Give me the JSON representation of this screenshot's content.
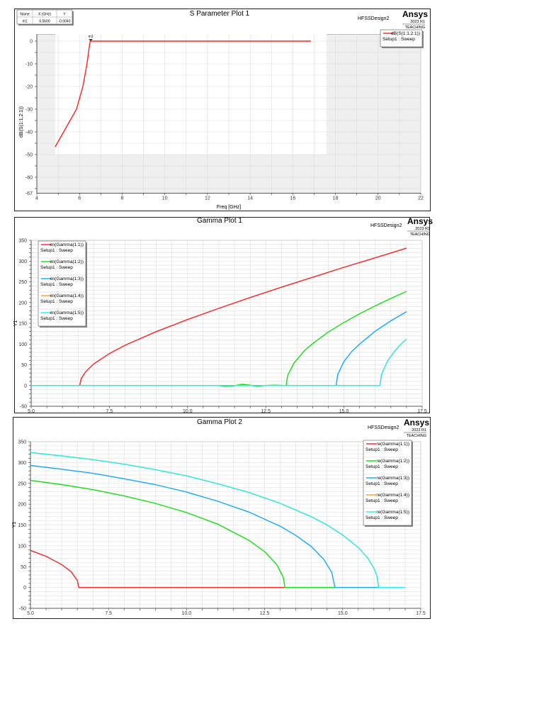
{
  "chart_data": [
    {
      "type": "line",
      "title": "S Parameter Plot 1",
      "design": "HFSSDesign2",
      "logo": {
        "brand": "Ansys",
        "version": "2023 R1",
        "edition": "TEACHING"
      },
      "xlabel": "Freq [GHz]",
      "ylabel": "dB(S(1:1,2:1))",
      "xlim": [
        4,
        22
      ],
      "ylim": [
        -67,
        3
      ],
      "xticks": [
        "4",
        "6",
        "8",
        "10",
        "12",
        "14",
        "16",
        "18",
        "20",
        "22"
      ],
      "yticks": [
        "0",
        "-10",
        "-20",
        "-30",
        "-40",
        "-50",
        "-60",
        "-67"
      ],
      "grid": true,
      "legend_placement": "top-right",
      "marker_table": {
        "headers": [
          "Name",
          "X (GHz)",
          "Y"
        ],
        "row": [
          "m1",
          "6.5600",
          "-0.0040"
        ]
      },
      "marker": {
        "name": "m1",
        "x": 6.56,
        "y": -0.004
      },
      "series": [
        {
          "name": "dB(S(1:1,2:1))",
          "setup": "Setup1 : Sweep",
          "color": "#ff2020",
          "points": [
            [
              4.86,
              -46.6
            ],
            [
              5.26,
              -40
            ],
            [
              5.86,
              -30
            ],
            [
              6.16,
              -20
            ],
            [
              6.35,
              -10
            ],
            [
              6.45,
              -3
            ],
            [
              6.5,
              0
            ],
            [
              16.85,
              0
            ]
          ]
        }
      ]
    },
    {
      "type": "line",
      "title": "Gamma Plot 1",
      "design": "HFSSDesign2",
      "logo": {
        "brand": "Ansys",
        "version": "2023 R1",
        "edition": "TEACHING"
      },
      "xlabel": "",
      "ylabel": "Y1",
      "xlim": [
        5,
        17.5
      ],
      "ylim": [
        -50,
        350
      ],
      "xticks": [
        "5.0",
        "7.5",
        "10.0",
        "12.5",
        "15.0",
        "17.5"
      ],
      "yticks": [
        "350",
        "300",
        "250",
        "200",
        "150",
        "100",
        "50",
        "0",
        "-50"
      ],
      "grid": true,
      "legend_placement": "top-left",
      "series": [
        {
          "name": "im(Gamma(1:1))",
          "setup": "Setup1 : Sweep",
          "color": "#ff2020",
          "points": [
            [
              5,
              0
            ],
            [
              6.55,
              0
            ],
            [
              6.6,
              17
            ],
            [
              6.75,
              34
            ],
            [
              7,
              52
            ],
            [
              7.5,
              77
            ],
            [
              8,
              97
            ],
            [
              9,
              130
            ],
            [
              10,
              159
            ],
            [
              11,
              186
            ],
            [
              12,
              212
            ],
            [
              13,
              237
            ],
            [
              14,
              261
            ],
            [
              15,
              285
            ],
            [
              16,
              308
            ],
            [
              17,
              331
            ]
          ]
        },
        {
          "name": "im(Gamma(1:2))",
          "setup": "Setup1 : Sweep",
          "color": "#10e010",
          "points": [
            [
              5,
              0
            ],
            [
              11.0,
              0
            ],
            [
              11.2,
              -2
            ],
            [
              11.45,
              -1
            ],
            [
              11.75,
              3
            ],
            [
              12.0,
              1
            ],
            [
              12.2,
              -2
            ],
            [
              12.45,
              0
            ],
            [
              12.8,
              1
            ],
            [
              13.15,
              0
            ],
            [
              13.2,
              24
            ],
            [
              13.4,
              54
            ],
            [
              13.75,
              85
            ],
            [
              14,
              101
            ],
            [
              14.5,
              129
            ],
            [
              15,
              152
            ],
            [
              15.5,
              173
            ],
            [
              16,
              192
            ],
            [
              16.5,
              210
            ],
            [
              17,
              227
            ]
          ]
        },
        {
          "name": "im(Gamma(1:3))",
          "setup": "Setup1 : Sweep",
          "color": "#10a8ff",
          "points": [
            [
              5,
              0
            ],
            [
              14.75,
              0
            ],
            [
              14.8,
              26
            ],
            [
              15,
              58
            ],
            [
              15.25,
              82
            ],
            [
              15.5,
              100
            ],
            [
              16,
              131
            ],
            [
              16.5,
              156
            ],
            [
              17,
              178
            ]
          ]
        },
        {
          "name": "im(Gamma(1:4))",
          "setup": "Setup1 : Sweep",
          "color": "#ff9a30",
          "points": [
            [
              5,
              0
            ],
            [
              16.15,
              0
            ],
            [
              16.2,
              27
            ],
            [
              16.4,
              60
            ],
            [
              16.6,
              81
            ],
            [
              16.8,
              98
            ],
            [
              17,
              112
            ]
          ]
        },
        {
          "name": "im(Gamma(1:5))",
          "setup": "Setup1 : Sweep",
          "color": "#20f0f0",
          "points": [
            [
              5,
              0
            ],
            [
              16.15,
              0
            ],
            [
              16.2,
              27
            ],
            [
              16.4,
              60
            ],
            [
              16.6,
              81
            ],
            [
              16.8,
              98
            ],
            [
              17,
              112
            ]
          ]
        }
      ]
    },
    {
      "type": "line",
      "title": "Gamma Plot 2",
      "design": "HFSSDesign2",
      "logo": {
        "brand": "Ansys",
        "version": "2023 R1",
        "edition": "TEACHING"
      },
      "xlabel": "",
      "ylabel": "Y1",
      "xlim": [
        5,
        17.5
      ],
      "ylim": [
        -50,
        350
      ],
      "xticks": [
        "5.0",
        "7.5",
        "10.0",
        "12.5",
        "15.0",
        "17.5"
      ],
      "yticks": [
        "350",
        "300",
        "250",
        "200",
        "150",
        "100",
        "50",
        "0",
        "-50"
      ],
      "grid": true,
      "legend_placement": "top-right",
      "series": [
        {
          "name": "re(Gamma(1:1))",
          "setup": "Setup1 : Sweep",
          "color": "#ff2020",
          "points": [
            [
              5,
              89
            ],
            [
              5.5,
              75
            ],
            [
              6,
              55
            ],
            [
              6.3,
              38
            ],
            [
              6.5,
              17
            ],
            [
              6.55,
              0
            ],
            [
              13.15,
              0
            ]
          ]
        },
        {
          "name": "re(Gamma(1:2))",
          "setup": "Setup1 : Sweep",
          "color": "#10e010",
          "points": [
            [
              5,
              257
            ],
            [
              6,
              247
            ],
            [
              7,
              235
            ],
            [
              8,
              220
            ],
            [
              9,
              202
            ],
            [
              10,
              180
            ],
            [
              11,
              152
            ],
            [
              12,
              113
            ],
            [
              12.5,
              86
            ],
            [
              12.9,
              54
            ],
            [
              13.1,
              24
            ],
            [
              13.15,
              0
            ],
            [
              14.75,
              0
            ]
          ]
        },
        {
          "name": "re(Gamma(1:3))",
          "setup": "Setup1 : Sweep",
          "color": "#10a8ff",
          "points": [
            [
              5,
              293
            ],
            [
              6,
              284
            ],
            [
              7,
              274
            ],
            [
              8,
              261
            ],
            [
              9,
              247
            ],
            [
              10,
              229
            ],
            [
              11,
              207
            ],
            [
              12,
              181
            ],
            [
              13,
              147
            ],
            [
              13.5,
              125
            ],
            [
              14,
              98
            ],
            [
              14.4,
              67
            ],
            [
              14.65,
              36
            ],
            [
              14.75,
              0
            ],
            [
              16.15,
              0
            ]
          ]
        },
        {
          "name": "re(Gamma(1:4))",
          "setup": "Setup1 : Sweep",
          "color": "#ff9a30",
          "points": [
            [
              5,
              324
            ],
            [
              6,
              316
            ],
            [
              7,
              307
            ],
            [
              8,
              296
            ],
            [
              9,
              283
            ],
            [
              10,
              268
            ],
            [
              11,
              249
            ],
            [
              12,
              228
            ],
            [
              13,
              202
            ],
            [
              14,
              170
            ],
            [
              14.5,
              150
            ],
            [
              15,
              126
            ],
            [
              15.5,
              96
            ],
            [
              15.8,
              71
            ],
            [
              16,
              46
            ],
            [
              16.1,
              27
            ],
            [
              16.15,
              0
            ],
            [
              17,
              0
            ]
          ]
        },
        {
          "name": "re(Gamma(1:5))",
          "setup": "Setup1 : Sweep",
          "color": "#20f0f0",
          "points": [
            [
              5,
              324
            ],
            [
              6,
              316
            ],
            [
              7,
              307
            ],
            [
              8,
              296
            ],
            [
              9,
              283
            ],
            [
              10,
              268
            ],
            [
              11,
              249
            ],
            [
              12,
              228
            ],
            [
              13,
              202
            ],
            [
              14,
              170
            ],
            [
              14.5,
              150
            ],
            [
              15,
              126
            ],
            [
              15.5,
              96
            ],
            [
              15.8,
              71
            ],
            [
              16,
              46
            ],
            [
              16.1,
              27
            ],
            [
              16.15,
              0
            ],
            [
              17,
              0
            ]
          ]
        }
      ]
    }
  ]
}
